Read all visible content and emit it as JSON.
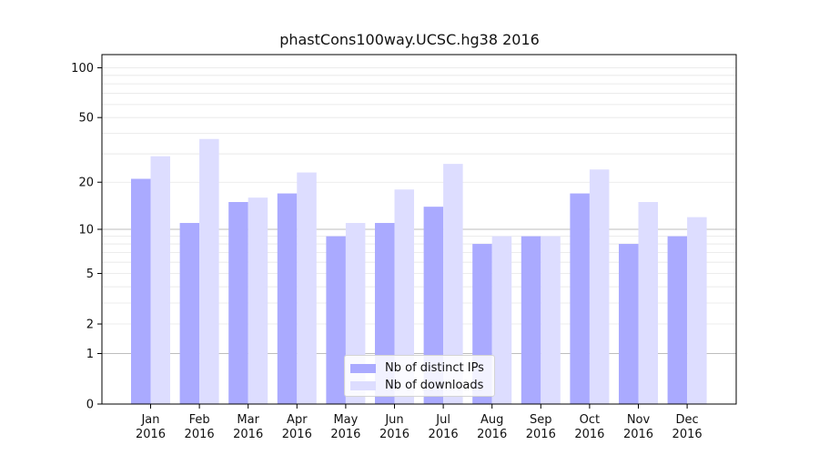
{
  "chart_data": {
    "type": "bar",
    "title": "phastCons100way.UCSC.hg38 2016",
    "xlabel": "",
    "ylabel": "",
    "categories": [
      {
        "month": "Jan",
        "year": "2016"
      },
      {
        "month": "Feb",
        "year": "2016"
      },
      {
        "month": "Mar",
        "year": "2016"
      },
      {
        "month": "Apr",
        "year": "2016"
      },
      {
        "month": "May",
        "year": "2016"
      },
      {
        "month": "Jun",
        "year": "2016"
      },
      {
        "month": "Jul",
        "year": "2016"
      },
      {
        "month": "Aug",
        "year": "2016"
      },
      {
        "month": "Sep",
        "year": "2016"
      },
      {
        "month": "Oct",
        "year": "2016"
      },
      {
        "month": "Nov",
        "year": "2016"
      },
      {
        "month": "Dec",
        "year": "2016"
      }
    ],
    "series": [
      {
        "name": "Nb of distinct IPs",
        "color": "#aaaaff",
        "values": [
          21,
          11,
          15,
          17,
          9,
          11,
          14,
          8,
          9,
          17,
          8,
          9
        ]
      },
      {
        "name": "Nb of downloads",
        "color": "#ddddff",
        "values": [
          29,
          37,
          16,
          23,
          11,
          18,
          26,
          9,
          9,
          24,
          15,
          12
        ]
      }
    ],
    "yscale": "log1p",
    "yticks": [
      0,
      1,
      2,
      5,
      10,
      20,
      50,
      100
    ],
    "ylim": [
      0,
      120
    ],
    "grid": true,
    "legend_position": "lower center"
  }
}
